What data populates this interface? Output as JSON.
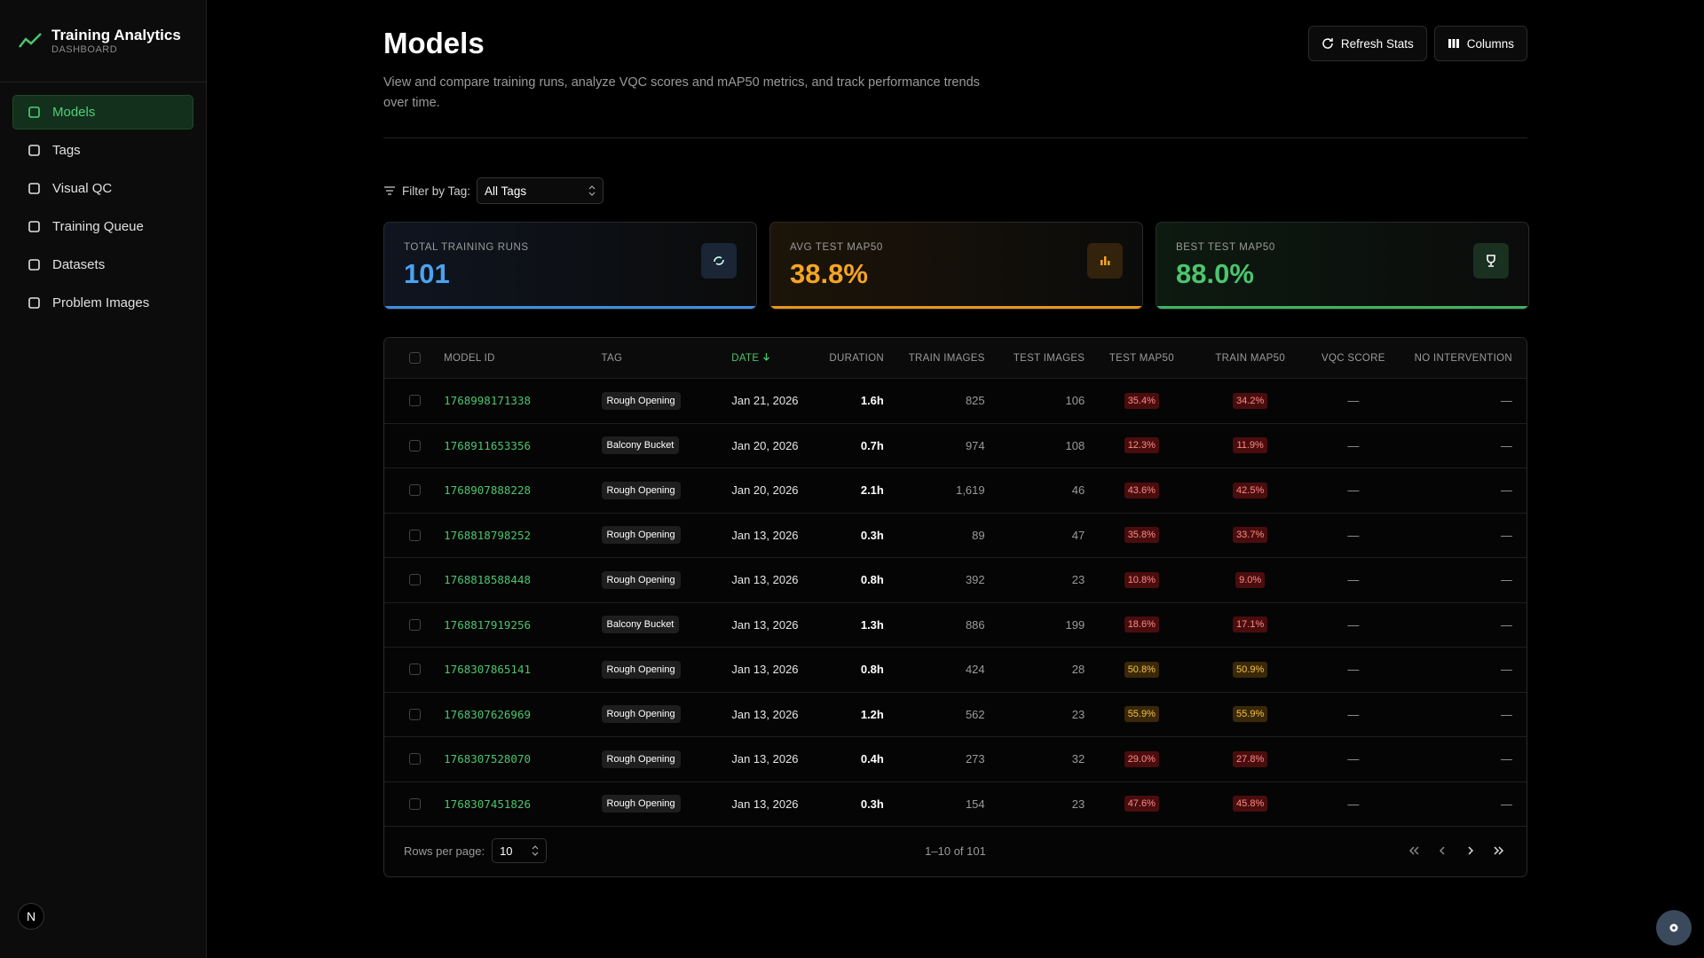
{
  "sidebar": {
    "title": "Training Analytics",
    "subtitle": "DASHBOARD",
    "nav": [
      "Models",
      "Tags",
      "Visual QC",
      "Training Queue",
      "Datasets",
      "Problem Images"
    ],
    "avatar": "N"
  },
  "header": {
    "title": "Models",
    "description": "View and compare training runs, analyze VQC scores and mAP50 metrics, and track performance trends over time.",
    "buttons": [
      "Refresh Stats",
      "Columns"
    ]
  },
  "filter": {
    "label": "Filter by Tag:",
    "value": "All Tags"
  },
  "stats": [
    {
      "label": "TOTAL TRAINING RUNS",
      "value": "101"
    },
    {
      "label": "AVG TEST MAP50",
      "value": "38.8%"
    },
    {
      "label": "BEST TEST MAP50",
      "value": "88.0%"
    }
  ],
  "table": {
    "columns": [
      "MODEL ID",
      "TAG",
      "DATE",
      "DURATION",
      "TRAIN IMAGES",
      "TEST IMAGES",
      "TEST MAP50",
      "TRAIN MAP50",
      "VQC SCORE",
      "NO INTERVENTION"
    ],
    "rows": [
      [
        "1768998171338",
        "Rough Opening",
        "Jan 21, 2026",
        "1.6h",
        "825",
        "106",
        "35.4%",
        "34.2%",
        "—",
        "—"
      ],
      [
        "1768911653356",
        "Balcony Bucket",
        "Jan 20, 2026",
        "0.7h",
        "974",
        "108",
        "12.3%",
        "11.9%",
        "—",
        "—"
      ],
      [
        "1768907888228",
        "Rough Opening",
        "Jan 20, 2026",
        "2.1h",
        "1,619",
        "46",
        "43.6%",
        "42.5%",
        "—",
        "—"
      ],
      [
        "1768818798252",
        "Rough Opening",
        "Jan 13, 2026",
        "0.3h",
        "89",
        "47",
        "35.8%",
        "33.7%",
        "—",
        "—"
      ],
      [
        "1768818588448",
        "Rough Opening",
        "Jan 13, 2026",
        "0.8h",
        "392",
        "23",
        "10.8%",
        "9.0%",
        "—",
        "—"
      ],
      [
        "1768817919256",
        "Balcony Bucket",
        "Jan 13, 2026",
        "1.3h",
        "886",
        "199",
        "18.6%",
        "17.1%",
        "—",
        "—"
      ],
      [
        "1768307865141",
        "Rough Opening",
        "Jan 13, 2026",
        "0.8h",
        "424",
        "28",
        "50.8%",
        "50.9%",
        "—",
        "—"
      ],
      [
        "1768307626969",
        "Rough Opening",
        "Jan 13, 2026",
        "1.2h",
        "562",
        "23",
        "55.9%",
        "55.9%",
        "—",
        "—"
      ],
      [
        "1768307528070",
        "Rough Opening",
        "Jan 13, 2026",
        "0.4h",
        "273",
        "32",
        "29.0%",
        "27.8%",
        "—",
        "—"
      ],
      [
        "1768307451826",
        "Rough Opening",
        "Jan 13, 2026",
        "0.3h",
        "154",
        "23",
        "47.6%",
        "45.8%",
        "—",
        "—"
      ]
    ]
  },
  "pagination": {
    "rows_label": "Rows per page:",
    "rows_value": "10",
    "range": "1–10 of 101"
  }
}
